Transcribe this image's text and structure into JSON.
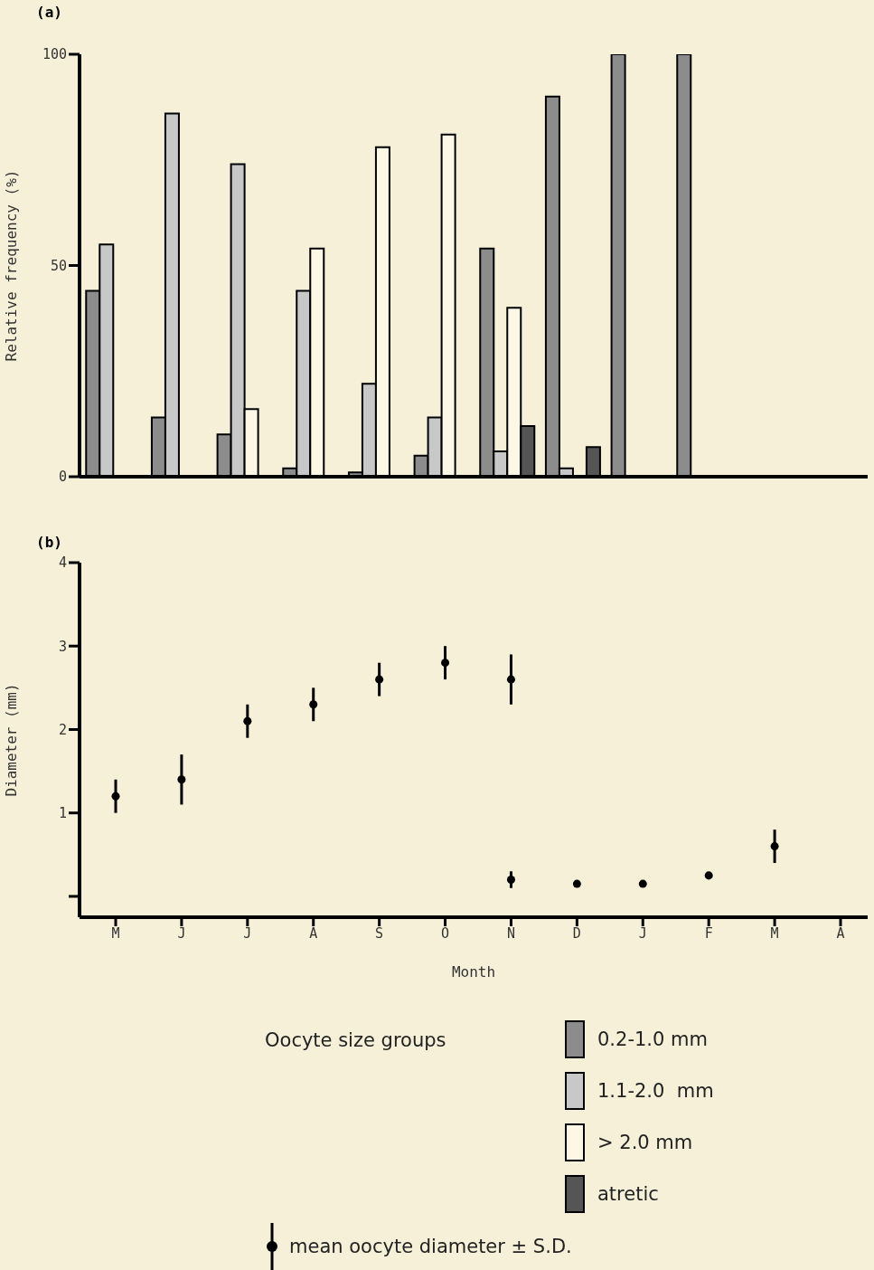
{
  "chart_data": [
    {
      "type": "bar",
      "title": "(a)",
      "ylabel": "Relative frequency (%)",
      "legend_title": "Oocyte size groups",
      "categories": [
        null,
        null,
        null,
        null,
        null,
        null,
        null,
        null,
        null,
        null,
        null,
        null
      ],
      "series": [
        {
          "name": "0.2-1.0 mm",
          "color": "#8c8c8c",
          "values": [
            44,
            14,
            10,
            2,
            1,
            5,
            54,
            90,
            100,
            100,
            null,
            null
          ]
        },
        {
          "name": "1.1-2.0  mm",
          "color": "#c8c8c8",
          "values": [
            55,
            86,
            74,
            44,
            22,
            14,
            6,
            2,
            null,
            null,
            null,
            null
          ]
        },
        {
          "name": "> 2.0 mm",
          "color": "#fdf8e6",
          "values": [
            null,
            null,
            16,
            54,
            78,
            81,
            40,
            null,
            null,
            null,
            null,
            null
          ]
        },
        {
          "name": "atretic",
          "color": "#555555",
          "values": [
            null,
            null,
            null,
            null,
            null,
            null,
            12,
            7,
            null,
            null,
            null,
            null
          ]
        }
      ],
      "ylim": [
        0,
        100
      ],
      "yticks": [
        0,
        50,
        100
      ],
      "tick_labels": "y",
      "legend": "bottom"
    },
    {
      "type": "scatter",
      "title": "(b)",
      "xlabel": "Month",
      "ylabel": "Diameter (mm)",
      "categories": [
        "M",
        "J",
        "J",
        "A",
        "S",
        "O",
        "N",
        "D",
        "J",
        "F",
        "M",
        "A"
      ],
      "series": [
        {
          "name": "mean oocyte diameter ± S.D.",
          "color": "#000000",
          "values": [
            1.2,
            1.4,
            2.1,
            2.3,
            2.6,
            2.8,
            2.6,
            null,
            null,
            null,
            null,
            null
          ],
          "errors": [
            [
              1.0,
              1.4
            ],
            [
              1.1,
              1.7
            ],
            [
              1.9,
              2.3
            ],
            [
              2.1,
              2.5
            ],
            [
              2.4,
              2.8
            ],
            [
              2.6,
              3.0
            ],
            [
              2.3,
              2.9
            ],
            null,
            null,
            null,
            null,
            null
          ]
        },
        {
          "color": "#000000",
          "values": [
            null,
            null,
            null,
            null,
            null,
            null,
            0.2,
            0.15,
            0.15,
            0.25,
            0.6,
            null
          ],
          "errors": [
            null,
            null,
            null,
            null,
            null,
            null,
            [
              0.1,
              0.3
            ],
            null,
            null,
            null,
            [
              0.4,
              0.8
            ],
            null
          ]
        }
      ],
      "ylim": [
        -0.25,
        4
      ],
      "yticks": [
        {
          "value": 0,
          "label": null
        },
        1,
        2,
        3,
        4
      ],
      "marker": "circle",
      "legend": "bottom"
    }
  ]
}
